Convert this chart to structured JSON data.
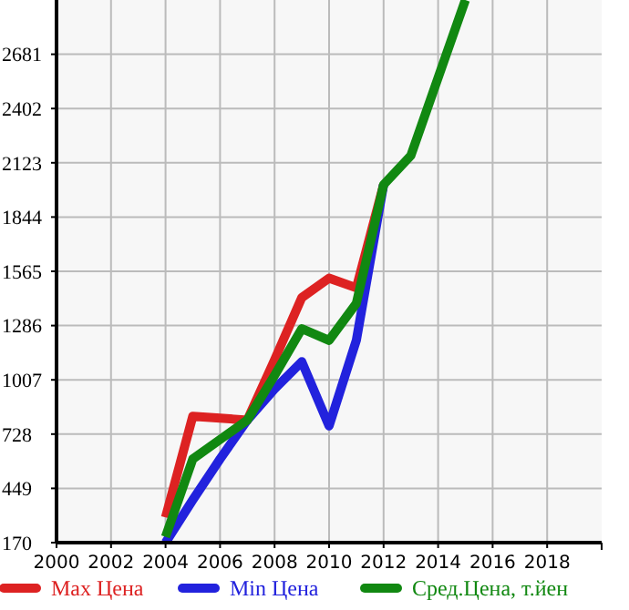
{
  "chart_data": {
    "type": "line",
    "x": [
      2004,
      2005,
      2006,
      2007,
      2008,
      2009,
      2010,
      2011,
      2012,
      2013,
      2014,
      2015
    ],
    "series": [
      {
        "name": "Max Цена",
        "color": "#dd2222",
        "values": [
          300,
          820,
          810,
          800,
          1110,
          1430,
          1530,
          1480,
          2010,
          null,
          null,
          null
        ]
      },
      {
        "name": "Min Цена",
        "color": "#2222dd",
        "values": [
          170,
          390,
          600,
          800,
          960,
          1100,
          770,
          1210,
          2010,
          null,
          null,
          null
        ]
      },
      {
        "name": "Сред.Цена, т.йен",
        "color": "#118811",
        "values": [
          200,
          600,
          700,
          800,
          1030,
          1270,
          1210,
          1400,
          2010,
          2160,
          2560,
          2960
        ]
      }
    ],
    "xlim": [
      2000,
      2020
    ],
    "xticks": [
      2000,
      2002,
      2004,
      2006,
      2008,
      2010,
      2012,
      2014,
      2016,
      2018
    ],
    "ylim": [
      170,
      2960
    ],
    "yticks": [
      170,
      449,
      728,
      1007,
      1286,
      1565,
      1844,
      2123,
      2402,
      2681
    ],
    "grid": true,
    "legend": "bottom",
    "marker": "none",
    "line_style": "solid"
  }
}
